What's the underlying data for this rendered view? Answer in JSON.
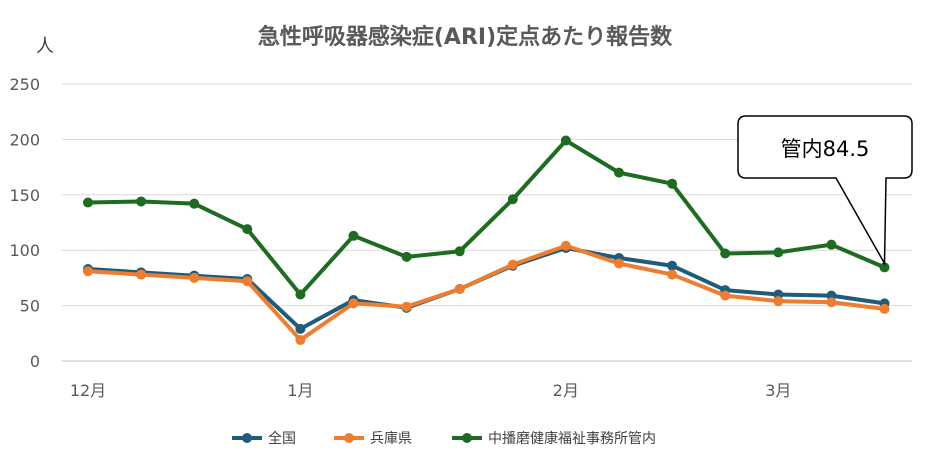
{
  "chart_data": {
    "type": "line",
    "title": "急性呼吸器感染症(ARI)定点あたり報告数",
    "ylabel": "人",
    "xlabel": "",
    "ylim": [
      0,
      250
    ],
    "yticks": [
      "0",
      "50",
      "100",
      "150",
      "200",
      "250"
    ],
    "xtick_labels": [
      {
        "index": 0,
        "label": "12月"
      },
      {
        "index": 4,
        "label": "1月"
      },
      {
        "index": 9,
        "label": "2月"
      },
      {
        "index": 13,
        "label": "3月"
      }
    ],
    "x": [
      1,
      2,
      3,
      4,
      5,
      6,
      7,
      8,
      9,
      10,
      11,
      12,
      13,
      14,
      15,
      16
    ],
    "grid": true,
    "legend_position": "bottom",
    "series": [
      {
        "name": "全国",
        "color": "#1F5C7A",
        "values": [
          83,
          80,
          77,
          74,
          29,
          55,
          48,
          65,
          86,
          102,
          93,
          86,
          64,
          60,
          59,
          52
        ]
      },
      {
        "name": "兵庫県",
        "color": "#ED7D31",
        "values": [
          81,
          78,
          75,
          72,
          19,
          52,
          49,
          65,
          87,
          104,
          88,
          78,
          59,
          54,
          53,
          47
        ]
      },
      {
        "name": "中播磨健康福祉事務所管内",
        "color": "#1E6B22",
        "values": [
          143,
          144,
          142,
          119,
          60,
          113,
          94,
          99,
          146,
          199,
          170,
          160,
          97,
          98,
          105,
          84.5
        ]
      }
    ],
    "annotation": {
      "text": "管内84.5",
      "series_index": 2,
      "point_index": 15
    }
  }
}
